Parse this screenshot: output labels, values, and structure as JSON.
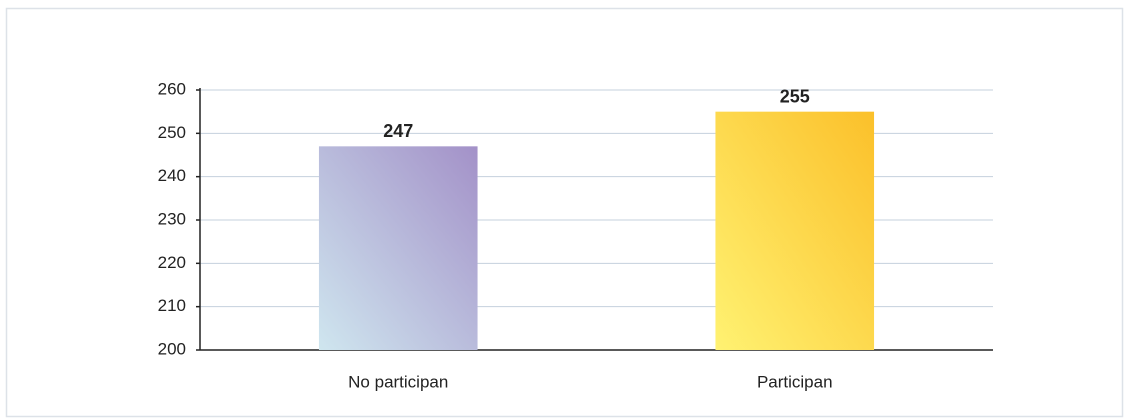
{
  "chart_data": {
    "type": "bar",
    "categories": [
      "No participan",
      "Participan"
    ],
    "values": [
      247,
      255
    ],
    "colors": [
      [
        "#cfe6ef",
        "#a391c8"
      ],
      [
        "#fff272",
        "#fbc02a"
      ]
    ],
    "ylim": [
      200,
      260
    ],
    "yticks": [
      200,
      210,
      220,
      230,
      240,
      250,
      260
    ],
    "grid": true
  }
}
